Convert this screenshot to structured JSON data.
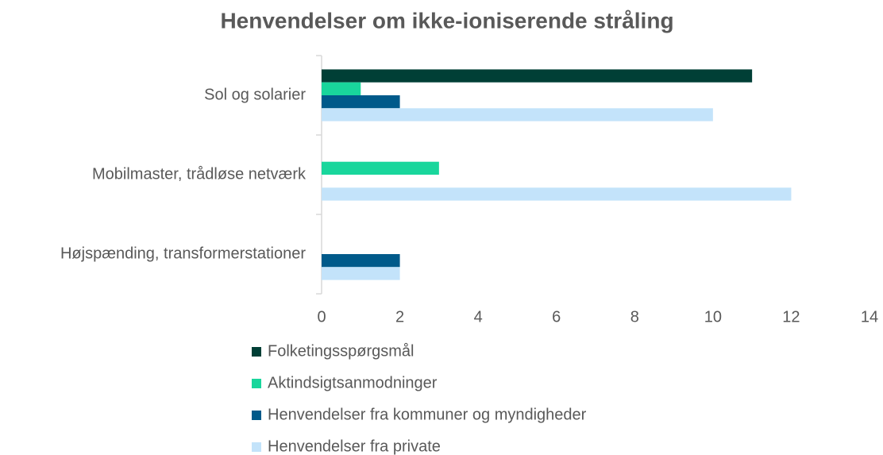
{
  "chart_data": {
    "type": "hbar",
    "title": "Henvendelser om ikke-ioniserende stråling",
    "categories": [
      "Sol og solarier",
      "Mobilmaster, trådløse netværk",
      "Højspænding, transformerstationer"
    ],
    "series": [
      {
        "name": "Folketingsspørgsmål",
        "color": "#003f36",
        "values": [
          11,
          0,
          0
        ]
      },
      {
        "name": "Aktindsigtsanmodninger",
        "color": "#19d69c",
        "values": [
          1,
          3,
          0
        ]
      },
      {
        "name": "Henvendelser fra kommuner og myndigheder",
        "color": "#005a8a",
        "values": [
          2,
          0,
          2
        ]
      },
      {
        "name": "Henvendelser fra private",
        "color": "#c3e3fa",
        "values": [
          10,
          12,
          2
        ]
      }
    ],
    "xlim": [
      0,
      14
    ],
    "xticks": [
      0,
      2,
      4,
      6,
      8,
      10,
      12,
      14
    ],
    "grid": false,
    "legend": "bottom"
  }
}
